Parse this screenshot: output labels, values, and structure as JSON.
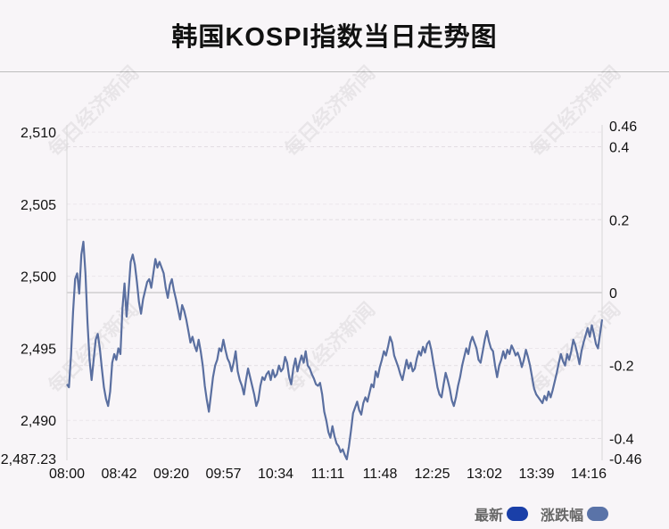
{
  "title": "韩国KOSPI指数当日走势图",
  "watermark": "每日经济新闻",
  "legend": [
    {
      "label": "最新",
      "color": "#1a3fa8"
    },
    {
      "label": "涨跌幅",
      "color": "#5a73a8"
    }
  ],
  "chart_data": {
    "type": "line",
    "x_ticks": [
      "08:00",
      "08:42",
      "09:20",
      "09:57",
      "10:34",
      "11:11",
      "11:48",
      "12:25",
      "13:02",
      "13:39",
      "14:16"
    ],
    "y_left": {
      "ticks": [
        2490,
        2495,
        2500,
        2505,
        2510
      ],
      "tick_labels": [
        "2,490",
        "2,495",
        "2,500",
        "2,505",
        "2,510"
      ],
      "min": 2487.23,
      "min_label": "2,487.23",
      "max": 2510.5
    },
    "y_right": {
      "ticks": [
        -0.4,
        -0.2,
        0,
        0.2,
        0.4
      ],
      "tick_labels": [
        "-0.4",
        "-0.2",
        "0",
        "0.2",
        "0.4"
      ],
      "min": -0.46,
      "min_label": "-0.46",
      "max": 0.46,
      "max_label": "0.46"
    },
    "reference_line": 0,
    "grid": "horizontal dashed",
    "series": [
      {
        "name": "最新",
        "color": "#5a6fa0",
        "values": [
          2492.5,
          2492.3,
          2494.5,
          2497.5,
          2499.8,
          2500.2,
          2498.8,
          2501.5,
          2502.4,
          2500.2,
          2496.8,
          2494.2,
          2492.8,
          2494.2,
          2495.6,
          2496.0,
          2495.0,
          2493.6,
          2492.3,
          2491.5,
          2491.0,
          2492.0,
          2494.0,
          2494.6,
          2494.2,
          2495.0,
          2494.6,
          2497.8,
          2499.5,
          2497.2,
          2499.0,
          2501.0,
          2501.5,
          2500.8,
          2499.6,
          2498.2,
          2497.4,
          2498.4,
          2499.0,
          2499.6,
          2499.8,
          2499.2,
          2500.2,
          2501.2,
          2500.6,
          2501.0,
          2500.6,
          2500.2,
          2499.2,
          2498.5,
          2499.4,
          2499.8,
          2499.0,
          2498.4,
          2497.7,
          2497.0,
          2498.0,
          2497.6,
          2497.0,
          2496.2,
          2495.4,
          2495.8,
          2495.2,
          2494.8,
          2495.6,
          2494.8,
          2493.8,
          2492.4,
          2491.4,
          2490.6,
          2491.8,
          2493.0,
          2493.8,
          2494.2,
          2495.0,
          2494.8,
          2495.6,
          2494.9,
          2494.3,
          2494.0,
          2493.4,
          2494.0,
          2494.8,
          2493.4,
          2492.8,
          2492.4,
          2491.8,
          2492.8,
          2493.6,
          2493.0,
          2492.4,
          2491.8,
          2491.0,
          2491.4,
          2492.4,
          2493.0,
          2492.8,
          2493.2,
          2493.4,
          2492.8,
          2493.5,
          2493.0,
          2493.2,
          2493.8,
          2493.4,
          2493.6,
          2494.4,
          2494.0,
          2493.0,
          2492.5,
          2493.6,
          2494.3,
          2493.4,
          2494.0,
          2494.5,
          2494.0,
          2494.8,
          2493.8,
          2493.6,
          2493.2,
          2492.9,
          2492.5,
          2492.4,
          2492.6,
          2491.8,
          2490.6,
          2490.0,
          2489.2,
          2488.8,
          2489.6,
          2488.9,
          2488.4,
          2488.2,
          2487.8,
          2488.0,
          2487.6,
          2487.3,
          2488.2,
          2489.3,
          2490.5,
          2490.9,
          2491.3,
          2490.7,
          2490.4,
          2491.2,
          2491.6,
          2491.3,
          2491.9,
          2492.5,
          2492.3,
          2493.4,
          2493.0,
          2493.7,
          2494.2,
          2494.8,
          2494.5,
          2495.1,
          2495.8,
          2495.4,
          2494.5,
          2494.1,
          2493.7,
          2493.2,
          2492.8,
          2493.5,
          2494.2,
          2493.6,
          2494.0,
          2493.4,
          2493.6,
          2494.3,
          2494.8,
          2494.5,
          2495.1,
          2494.7,
          2495.3,
          2495.5,
          2494.9,
          2494.0,
          2493.2,
          2492.3,
          2491.8,
          2491.6,
          2492.5,
          2493.3,
          2492.8,
          2492.2,
          2491.4,
          2491.0,
          2491.6,
          2492.4,
          2493.0,
          2493.8,
          2494.4,
          2495.0,
          2494.6,
          2495.4,
          2495.8,
          2495.4,
          2495.0,
          2494.2,
          2494.0,
          2494.8,
          2495.6,
          2496.2,
          2495.5,
          2495.0,
          2494.8,
          2493.8,
          2493.0,
          2493.8,
          2494.2,
          2494.8,
          2494.3,
          2494.9,
          2494.6,
          2495.2,
          2494.9,
          2494.5,
          2494.7,
          2494.3,
          2493.7,
          2494.2,
          2494.9,
          2494.4,
          2493.8,
          2493.0,
          2492.2,
          2491.8,
          2491.6,
          2491.4,
          2491.2,
          2491.7,
          2491.4,
          2492.0,
          2491.6,
          2492.1,
          2492.7,
          2493.3,
          2494.0,
          2494.6,
          2494.1,
          2493.8,
          2494.6,
          2494.2,
          2494.8,
          2495.6,
          2495.2,
          2494.6,
          2493.9,
          2494.8,
          2495.4,
          2495.9,
          2496.4,
          2495.8,
          2496.6,
          2496.0,
          2495.3,
          2495.0,
          2496.0,
          2497.0
        ]
      }
    ]
  }
}
